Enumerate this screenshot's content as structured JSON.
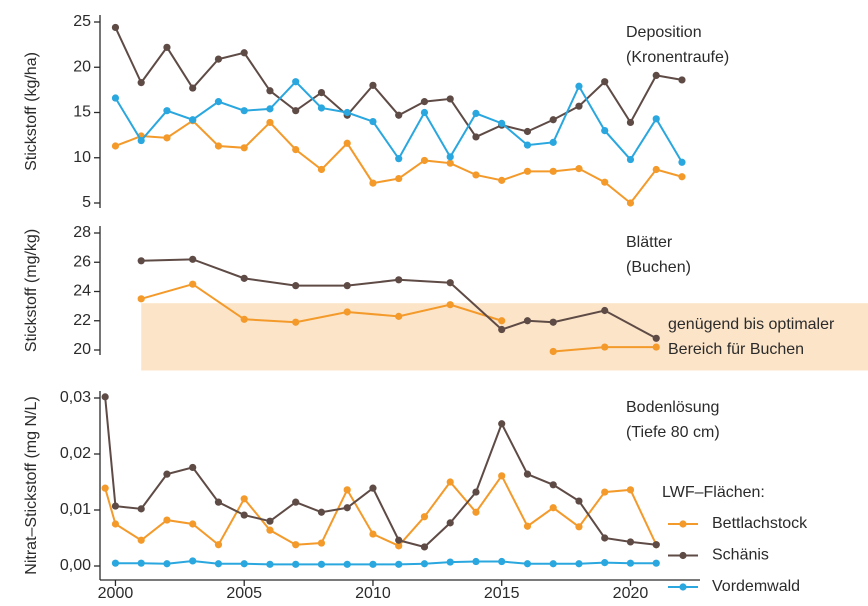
{
  "chart_data": [
    {
      "type": "line",
      "title": "Deposition",
      "subtitle": "(Kronentraufe)",
      "ylabel": "Stickstoff (kg/ha)",
      "x": [
        2000,
        2001,
        2002,
        2003,
        2004,
        2005,
        2006,
        2007,
        2008,
        2009,
        2010,
        2011,
        2012,
        2013,
        2014,
        2015,
        2016,
        2017,
        2018,
        2019,
        2020,
        2021,
        2022
      ],
      "series": [
        {
          "color": "#f39a2b",
          "values": [
            11.3,
            12.4,
            12.2,
            14.1,
            11.3,
            11.1,
            13.9,
            10.9,
            8.7,
            11.6,
            7.2,
            7.7,
            9.7,
            9.4,
            8.1,
            7.5,
            8.5,
            8.5,
            8.8,
            7.3,
            5.0,
            8.7,
            7.9
          ]
        },
        {
          "color": "#5f4b46",
          "values": [
            24.4,
            18.3,
            22.2,
            17.7,
            20.9,
            21.6,
            17.4,
            15.2,
            17.2,
            14.7,
            18.0,
            14.7,
            16.2,
            16.5,
            12.3,
            13.6,
            12.9,
            14.2,
            15.7,
            18.4,
            13.9,
            19.1,
            18.6
          ]
        },
        {
          "color": "#2aa7de",
          "values": [
            16.6,
            11.9,
            15.2,
            14.2,
            16.2,
            15.2,
            15.4,
            18.4,
            15.5,
            15.0,
            14.0,
            9.9,
            15.0,
            10.1,
            14.9,
            13.8,
            11.4,
            11.7,
            17.9,
            13.0,
            9.8,
            14.3,
            9.5
          ]
        }
      ],
      "xlim": [
        1999.4,
        2022.7
      ],
      "ylim": [
        5,
        25
      ],
      "yticks": [
        5,
        10,
        15,
        20,
        25
      ]
    },
    {
      "type": "line",
      "title": "Blätter",
      "subtitle": "(Buchen)",
      "ylabel": "Stickstoff (mg/kg)",
      "x": [
        2001,
        2003,
        2005,
        2007,
        2009,
        2011,
        2013,
        2015,
        2016,
        2017,
        2019,
        2021
      ],
      "series": [
        {
          "color": "#f39a2b",
          "values": [
            23.5,
            24.5,
            22.1,
            21.9,
            22.6,
            22.3,
            23.1,
            22.0,
            null,
            19.9,
            20.2,
            20.2
          ]
        },
        {
          "color": "#5f4b46",
          "values": [
            26.1,
            26.2,
            24.9,
            24.4,
            24.4,
            24.8,
            24.6,
            21.4,
            22.0,
            21.9,
            22.7,
            20.8
          ]
        }
      ],
      "band": {
        "range": [
          18.6,
          23.2
        ],
        "from": 2001,
        "color": "#fce4c8",
        "label": [
          "genügend bis optimaler",
          "Bereich für Buchen"
        ]
      },
      "xlim": [
        1999.4,
        2022.7
      ],
      "ylim": [
        20,
        28
      ],
      "yticks": [
        20,
        22,
        24,
        26,
        28
      ]
    },
    {
      "type": "line",
      "title": "Bodenlösung",
      "subtitle": "(Tiefe 80 cm)",
      "ylabel": "Nitrat–Stickstoff (mg N/L)",
      "legend_title": "LWF–Flächen:",
      "x": [
        1999.6,
        2000,
        2001,
        2002,
        2003,
        2004,
        2005,
        2006,
        2007,
        2008,
        2009,
        2010,
        2011,
        2012,
        2013,
        2014,
        2015,
        2016,
        2017,
        2018,
        2019,
        2020,
        2021
      ],
      "series": [
        {
          "name": "Bettlachstock",
          "color": "#f39a2b",
          "values": [
            0.0139,
            0.0075,
            0.0046,
            0.0082,
            0.0075,
            0.0038,
            0.012,
            0.0064,
            0.0038,
            0.0041,
            0.0136,
            0.0057,
            0.0036,
            0.0088,
            0.015,
            0.0096,
            0.0161,
            0.0071,
            0.0104,
            0.007,
            0.0132,
            0.0136,
            0.0038
          ]
        },
        {
          "name": "Schänis",
          "color": "#5f4b46",
          "values": [
            0.0302,
            0.0107,
            0.0102,
            0.0164,
            0.0176,
            0.0114,
            0.0091,
            0.008,
            0.0114,
            0.0096,
            0.0104,
            0.0139,
            0.0046,
            0.0034,
            0.0077,
            0.0132,
            0.0254,
            0.0164,
            0.0145,
            0.0116,
            0.005,
            0.0043,
            0.0038
          ]
        },
        {
          "name": "Vordemwald",
          "color": "#2aa7de",
          "values": [
            null,
            0.0005,
            0.0005,
            0.0004,
            0.0009,
            0.0004,
            0.0004,
            0.0003,
            0.0003,
            0.0003,
            0.0003,
            0.0003,
            0.0003,
            0.0004,
            0.0007,
            0.0008,
            0.0008,
            0.0004,
            0.0004,
            0.0004,
            0.0006,
            0.0005,
            0.0005
          ]
        }
      ],
      "xlim": [
        1999.4,
        2022.7
      ],
      "xticks": [
        2000,
        2005,
        2010,
        2015,
        2020
      ],
      "ylim": [
        0,
        0.03
      ],
      "yticks": [
        {
          "value": 0,
          "label": "0,00"
        },
        {
          "value": 0.01,
          "label": "0,01"
        },
        {
          "value": 0.02,
          "label": "0,02"
        },
        {
          "value": 0.03,
          "label": "0,03"
        }
      ]
    }
  ]
}
